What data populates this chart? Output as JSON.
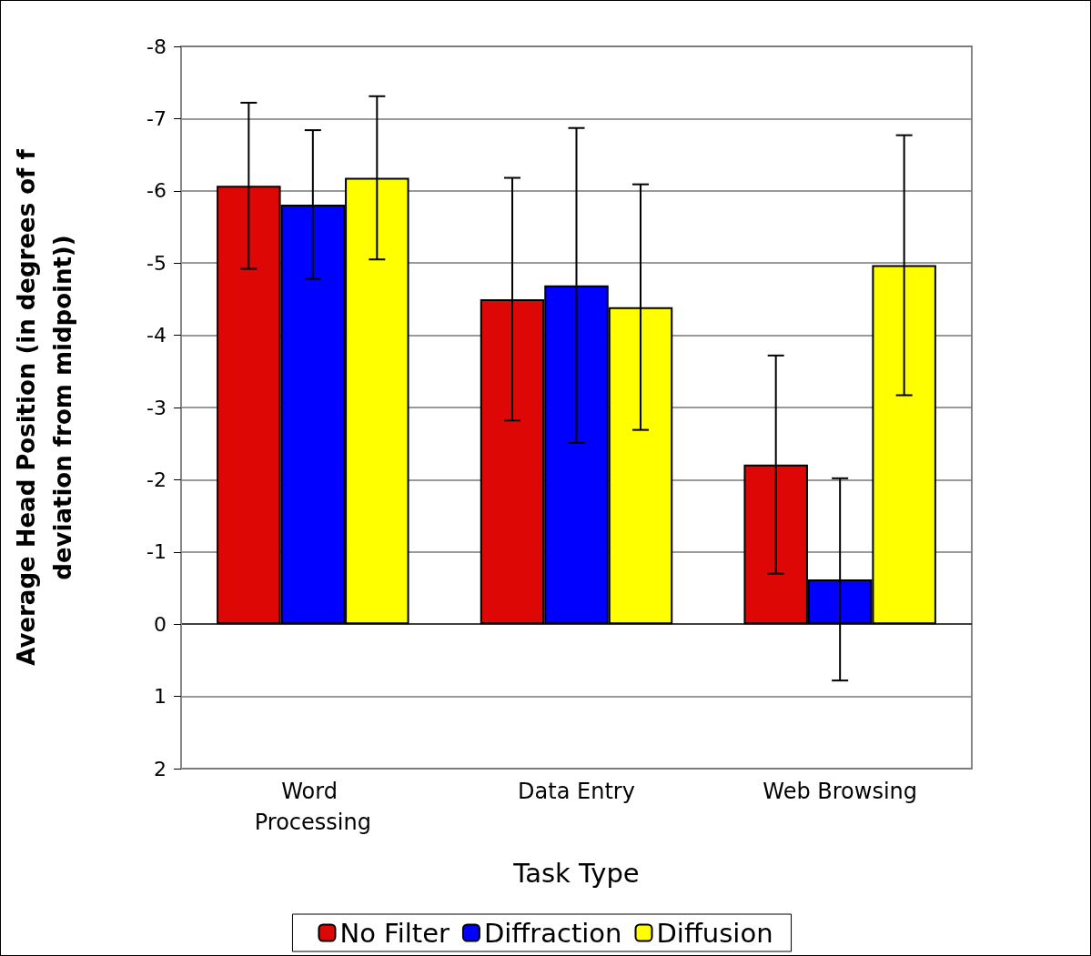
{
  "chart_data": {
    "type": "bar",
    "xlabel": "Task Type",
    "ylabel": "Average Head Position (in degrees of f\ndeviation from midpoint))",
    "categories": [
      "Word Processing",
      "Data Entry",
      "Web Browsing"
    ],
    "series": [
      {
        "name": "No Filter",
        "color": "#dd0806",
        "values": [
          -6.07,
          -4.5,
          -2.21
        ],
        "errors": [
          1.15,
          1.68,
          1.51
        ]
      },
      {
        "name": "Diffraction",
        "color": "#0000ff",
        "values": [
          -5.81,
          -4.69,
          -0.62
        ],
        "errors": [
          1.03,
          2.18,
          1.4
        ]
      },
      {
        "name": "Diffusion",
        "color": "#ffff00",
        "values": [
          -6.18,
          -4.39,
          -4.97
        ],
        "errors": [
          1.13,
          1.7,
          1.8
        ]
      }
    ],
    "ylim": [
      2,
      -8
    ],
    "yticks": [
      -8,
      -7,
      -6,
      -5,
      -4,
      -3,
      -2,
      -1,
      0,
      1,
      2
    ],
    "grid": "y",
    "legend": "bottom"
  }
}
